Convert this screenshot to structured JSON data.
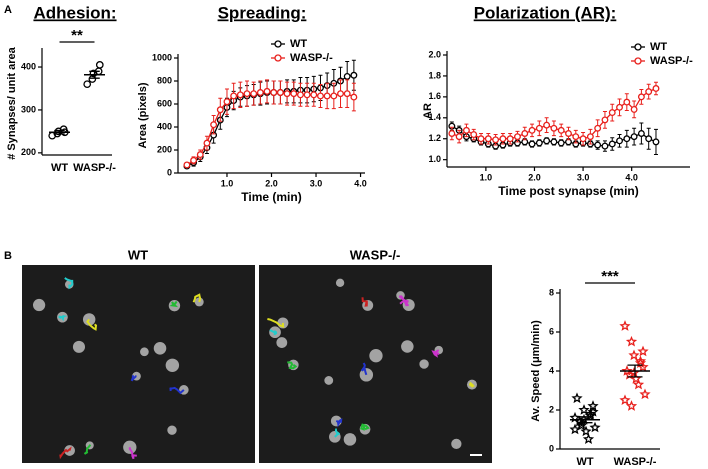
{
  "panel_labels": [
    "A",
    "B"
  ],
  "images": [
    {
      "label": "WT"
    },
    {
      "label": "WASP-/-"
    }
  ],
  "chart_data": [
    {
      "type": "strip",
      "title": "Adhesion:",
      "y_label": "# Synapses/ unit area",
      "categories": [
        "WT",
        "WASP-/-"
      ],
      "significance": "**",
      "marker": "circle",
      "groups": [
        {
          "color": "#000000",
          "values": [
            240,
            245,
            250,
            255,
            248
          ],
          "mean": 248,
          "error": 4
        },
        {
          "color": "#000000",
          "values": [
            360,
            372,
            385,
            390,
            405
          ],
          "mean": 382,
          "error": 8
        }
      ],
      "ylim": [
        195,
        435
      ],
      "yticks": [
        200,
        300,
        400
      ]
    },
    {
      "type": "line",
      "title": "Spreading:",
      "x_label": "Time (min)",
      "y_label": "Area  (pixels)",
      "x": [
        0.1,
        0.25,
        0.4,
        0.55,
        0.7,
        0.85,
        1.0,
        1.15,
        1.3,
        1.45,
        1.6,
        1.75,
        1.9,
        2.05,
        2.2,
        2.35,
        2.5,
        2.65,
        2.8,
        2.95,
        3.1,
        3.25,
        3.4,
        3.55,
        3.7,
        3.85
      ],
      "series": [
        {
          "name": "WT",
          "color": "#000000",
          "values": [
            60,
            90,
            140,
            220,
            330,
            460,
            570,
            630,
            660,
            670,
            680,
            690,
            700,
            700,
            700,
            710,
            710,
            720,
            720,
            730,
            740,
            760,
            780,
            800,
            840,
            850
          ],
          "errors": [
            20,
            30,
            40,
            50,
            70,
            80,
            80,
            80,
            80,
            90,
            90,
            100,
            100,
            100,
            100,
            100,
            100,
            110,
            110,
            110,
            110,
            110,
            120,
            120,
            130,
            130
          ]
        },
        {
          "name": "WASP-/-",
          "color": "#e8201c",
          "values": [
            70,
            110,
            160,
            260,
            420,
            550,
            620,
            670,
            680,
            690,
            690,
            700,
            710,
            700,
            700,
            690,
            690,
            680,
            680,
            680,
            670,
            670,
            670,
            690,
            690,
            660
          ],
          "errors": [
            20,
            30,
            40,
            60,
            80,
            100,
            110,
            110,
            110,
            110,
            100,
            100,
            100,
            100,
            100,
            100,
            100,
            100,
            100,
            100,
            100,
            110,
            110,
            120,
            120,
            120
          ]
        }
      ],
      "xlim": [
        -0.1,
        4.1
      ],
      "xticks": [
        {
          "value": 1,
          "label": "1.0"
        },
        {
          "value": 2,
          "label": "2.0"
        },
        {
          "value": 3,
          "label": "3.0"
        },
        {
          "value": 4,
          "label": "4.0"
        }
      ],
      "ylim": [
        0,
        1000
      ],
      "yticks": [
        0,
        200,
        400,
        600,
        800,
        1000
      ],
      "legend": "upper center"
    },
    {
      "type": "line",
      "title": "Polarization (AR):",
      "x_label": "Time post synapse (min)",
      "y_label": "AR",
      "x": [
        0.3,
        0.45,
        0.6,
        0.75,
        0.9,
        1.05,
        1.2,
        1.35,
        1.5,
        1.65,
        1.8,
        1.95,
        2.1,
        2.25,
        2.4,
        2.55,
        2.7,
        2.85,
        3.0,
        3.15,
        3.3,
        3.45,
        3.6,
        3.75,
        3.9,
        4.05,
        4.2,
        4.35,
        4.5
      ],
      "series": [
        {
          "name": "WT",
          "color": "#000000",
          "values": [
            1.32,
            1.28,
            1.22,
            1.2,
            1.17,
            1.15,
            1.13,
            1.14,
            1.16,
            1.16,
            1.17,
            1.15,
            1.16,
            1.18,
            1.17,
            1.16,
            1.17,
            1.15,
            1.16,
            1.15,
            1.14,
            1.13,
            1.15,
            1.18,
            1.2,
            1.22,
            1.25,
            1.2,
            1.17
          ],
          "errors": [
            0.04,
            0.04,
            0.04,
            0.03,
            0.03,
            0.03,
            0.03,
            0.03,
            0.03,
            0.03,
            0.03,
            0.03,
            0.03,
            0.03,
            0.03,
            0.03,
            0.03,
            0.03,
            0.03,
            0.03,
            0.04,
            0.05,
            0.06,
            0.06,
            0.08,
            0.08,
            0.1,
            0.1,
            0.12
          ]
        },
        {
          "name": "WASP-/-",
          "color": "#e8201c",
          "values": [
            1.25,
            1.22,
            1.28,
            1.24,
            1.2,
            1.2,
            1.19,
            1.2,
            1.2,
            1.22,
            1.25,
            1.28,
            1.3,
            1.33,
            1.3,
            1.28,
            1.25,
            1.22,
            1.2,
            1.22,
            1.3,
            1.38,
            1.45,
            1.5,
            1.55,
            1.48,
            1.6,
            1.65,
            1.68
          ],
          "errors": [
            0.06,
            0.06,
            0.06,
            0.05,
            0.05,
            0.05,
            0.05,
            0.05,
            0.05,
            0.05,
            0.06,
            0.06,
            0.07,
            0.07,
            0.07,
            0.06,
            0.06,
            0.06,
            0.06,
            0.07,
            0.08,
            0.08,
            0.08,
            0.08,
            0.08,
            0.08,
            0.07,
            0.07,
            0.06
          ]
        }
      ],
      "xlim": [
        0.2,
        5.2
      ],
      "xticks": [
        {
          "value": 1,
          "label": "1.0"
        },
        {
          "value": 2,
          "label": "2.0"
        },
        {
          "value": 3,
          "label": "3.0"
        },
        {
          "value": 4,
          "label": "4.0"
        }
      ],
      "ylim": [
        0.93,
        2.0
      ],
      "yticks": [
        {
          "value": 1,
          "label": "1.0"
        },
        1.2,
        1.4,
        1.6,
        1.8,
        {
          "value": 2,
          "label": "2.0"
        }
      ],
      "legend": "upper right"
    },
    {
      "type": "strip",
      "y_label": "Av. Speed (μm/min)",
      "categories": [
        "WT",
        "WASP-/-"
      ],
      "significance": "***",
      "marker": "star",
      "groups": [
        {
          "color": "#000000",
          "values": [
            1.0,
            1.2,
            1.5,
            1.8,
            2.2,
            2.6,
            1.4,
            0.9,
            0.5,
            1.1,
            1.6,
            1.3,
            2.0,
            1.7,
            1.9
          ],
          "mean": 1.5,
          "error": 0.15
        },
        {
          "color": "#e8201c",
          "values": [
            6.3,
            5.5,
            4.8,
            4.5,
            4.2,
            4.0,
            3.8,
            3.6,
            3.3,
            2.8,
            2.5,
            2.2,
            3.9,
            4.4,
            5.0
          ],
          "mean": 4.0,
          "error": 0.3
        }
      ],
      "ylim": [
        0,
        8
      ],
      "yticks": [
        0,
        2,
        4,
        6,
        8
      ]
    }
  ]
}
